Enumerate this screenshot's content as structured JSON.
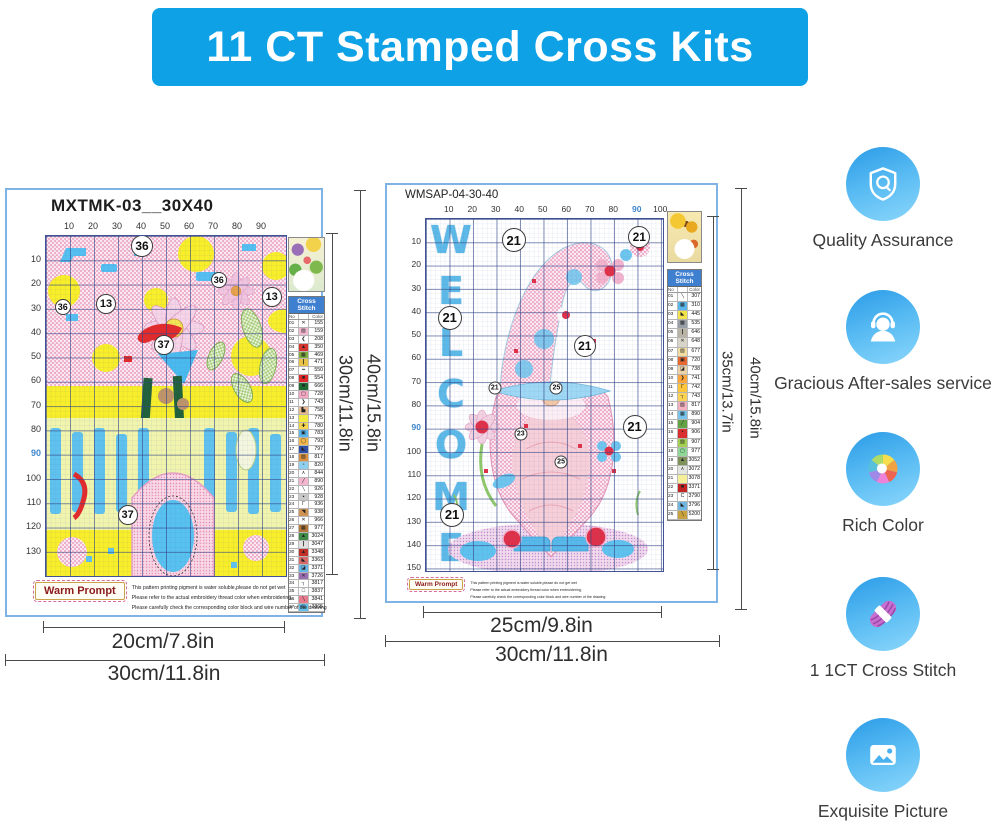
{
  "banner": {
    "title": "11 CT Stamped Cross Kits",
    "bg_color": "#0ea1e6"
  },
  "colors": {
    "banner_blue": "#0ea1e6",
    "pattern_yellow": "#f8ee29",
    "grid_navy": "#344687",
    "welcome_blue": "#55b7e7",
    "feature_icon_blue": "#49b1ee",
    "axis_highlight_blue": "#3f87cc"
  },
  "shared": {
    "legend_title": "Cross Stitch",
    "legend_col_no": "No",
    "legend_col_color": "Color",
    "warm_prompt_label": "Warm Prompt",
    "warm_prompt_lines": [
      "This pattern printing pigment is water soluble,please do not get wet",
      "Please refer to the actual embroidery thread color when embroidering,",
      "Please carefully check the corresponding color block and wire number of the drawing"
    ]
  },
  "left_pattern": {
    "code": "MXTMK-03__30X40",
    "x_axis": [
      "10",
      "20",
      "30",
      "40",
      "50",
      "60",
      "70",
      "80",
      "90"
    ],
    "y_axis": [
      "10",
      "20",
      "30",
      "40",
      "50",
      "60",
      "70",
      "80",
      "90",
      "100",
      "110",
      "120",
      "130"
    ],
    "markers": [
      {
        "t": "36",
        "x": 40,
        "y": 3,
        "sz": 22
      },
      {
        "t": "36",
        "x": 72,
        "y": 13,
        "sz": 16
      },
      {
        "t": "13",
        "x": 94,
        "y": 18,
        "sz": 20
      },
      {
        "t": "36",
        "x": 7,
        "y": 21,
        "sz": 16
      },
      {
        "t": "13",
        "x": 25,
        "y": 20,
        "sz": 20
      },
      {
        "t": "37",
        "x": 49,
        "y": 32,
        "sz": 20
      },
      {
        "t": "37",
        "x": 34,
        "y": 82,
        "sz": 20
      }
    ],
    "legend": [
      {
        "no": "01",
        "sym": "✕",
        "sw": "#ffffff",
        "code": "155"
      },
      {
        "no": "02",
        "sym": "▨",
        "sw": "#f2b8cf",
        "code": "159"
      },
      {
        "no": "03",
        "sym": "❮",
        "sw": "#ffffff",
        "code": "208"
      },
      {
        "no": "04",
        "sym": "▲",
        "sw": "#d8352f",
        "code": "350"
      },
      {
        "no": "05",
        "sym": "▦",
        "sw": "#7fae3f",
        "code": "469"
      },
      {
        "no": "06",
        "sym": "┃",
        "sw": "#e9c24a",
        "code": "471"
      },
      {
        "no": "07",
        "sym": "━",
        "sw": "#ffffff",
        "code": "550"
      },
      {
        "no": "08",
        "sym": "■",
        "sw": "#e02828",
        "code": "554"
      },
      {
        "no": "09",
        "sym": "■",
        "sw": "#1d6b33",
        "code": "666"
      },
      {
        "no": "10",
        "sym": "▢",
        "sw": "#f2a7c2",
        "code": "728"
      },
      {
        "no": "11",
        "sym": "❯",
        "sw": "#ffffff",
        "code": "743"
      },
      {
        "no": "12",
        "sym": "▙",
        "sw": "#e9b98e",
        "code": "758"
      },
      {
        "no": "13",
        "sym": "",
        "sw": "#f4e93f",
        "code": "775"
      },
      {
        "no": "14",
        "sym": "✚",
        "sw": "#f7d44e",
        "code": "780"
      },
      {
        "no": "15",
        "sym": "▣",
        "sw": "#5bb7ea",
        "code": "783"
      },
      {
        "no": "16",
        "sym": "◯",
        "sw": "#f0b64a",
        "code": "793"
      },
      {
        "no": "17",
        "sym": "◣",
        "sw": "#2f4ea6",
        "code": "797"
      },
      {
        "no": "18",
        "sym": "▨",
        "sw": "#d9903f",
        "code": "817"
      },
      {
        "no": "19",
        "sym": "▫",
        "sw": "#8fd0f0",
        "code": "820"
      },
      {
        "no": "20",
        "sym": "∧",
        "sw": "#ffffff",
        "code": "844"
      },
      {
        "no": "21",
        "sym": "╱",
        "sw": "#f4b6ce",
        "code": "890"
      },
      {
        "no": "22",
        "sym": "╲",
        "sw": "#ffffff",
        "code": "926"
      },
      {
        "no": "23",
        "sym": "▪",
        "sw": "#c8c8c8",
        "code": "928"
      },
      {
        "no": "24",
        "sym": "Γ",
        "sw": "#ffffff",
        "code": "936"
      },
      {
        "no": "25",
        "sym": "◥",
        "sw": "#cf9454",
        "code": "938"
      },
      {
        "no": "26",
        "sym": "✕",
        "sw": "#ffffff",
        "code": "966"
      },
      {
        "no": "27",
        "sym": "▦",
        "sw": "#b5773a",
        "code": "977"
      },
      {
        "no": "28",
        "sym": "▲",
        "sw": "#3e8a46",
        "code": "3024"
      },
      {
        "no": "29",
        "sym": "┃",
        "sw": "#e0e0e0",
        "code": "3047"
      },
      {
        "no": "30",
        "sym": "▲",
        "sw": "#c03028",
        "code": "3348"
      },
      {
        "no": "31",
        "sym": "◣",
        "sw": "#d76a6a",
        "code": "3363"
      },
      {
        "no": "32",
        "sym": "◪",
        "sw": "#67b6e6",
        "code": "3371"
      },
      {
        "no": "33",
        "sym": "✕",
        "sw": "#9a6db0",
        "code": "3726"
      },
      {
        "no": "34",
        "sym": "┐",
        "sw": "#ffffff",
        "code": "3817"
      },
      {
        "no": "35",
        "sym": "□",
        "sw": "#ffffff",
        "code": "3837"
      },
      {
        "no": "36",
        "sym": "╲",
        "sw": "#e87b8e",
        "code": "3841"
      },
      {
        "no": "37",
        "sym": "▤",
        "sw": "#62c2ee",
        "code": "3865"
      }
    ],
    "dims": {
      "width_inner": "20cm/7.8in",
      "width_outer": "30cm/11.8in",
      "height_inner": "30cm/11.8in",
      "height_outer": "40cm/15.8in"
    }
  },
  "right_pattern": {
    "code": "WMSAP-04-30-40",
    "welcome_letters": [
      "W",
      "E",
      "L",
      "C",
      "O",
      "M",
      "E"
    ],
    "x_axis": [
      "10",
      "20",
      "30",
      "40",
      "50",
      "60",
      "70",
      "80",
      "90",
      "100"
    ],
    "y_axis": [
      "10",
      "20",
      "30",
      "40",
      "50",
      "60",
      "70",
      "80",
      "90",
      "100",
      "110",
      "120",
      "130",
      "140",
      "150"
    ],
    "markers": [
      {
        "t": "21",
        "x": 37,
        "y": 6,
        "sz": 24
      },
      {
        "t": "21",
        "x": 90,
        "y": 5,
        "sz": 22
      },
      {
        "t": "21",
        "x": 10,
        "y": 28,
        "sz": 24
      },
      {
        "t": "21",
        "x": 67,
        "y": 36,
        "sz": 22
      },
      {
        "t": "21",
        "x": 29,
        "y": 48,
        "sz": 13
      },
      {
        "t": "21",
        "x": 88,
        "y": 59,
        "sz": 24
      },
      {
        "t": "25",
        "x": 55,
        "y": 48,
        "sz": 13
      },
      {
        "t": "23",
        "x": 40,
        "y": 61,
        "sz": 13
      },
      {
        "t": "25",
        "x": 57,
        "y": 69,
        "sz": 13
      },
      {
        "t": "21",
        "x": 11,
        "y": 84,
        "sz": 24
      }
    ],
    "legend": [
      {
        "no": "01",
        "sym": "╲",
        "sw": "#ffffff",
        "code": "307"
      },
      {
        "no": "02",
        "sym": "▦",
        "sw": "#5bb7ea",
        "code": "310"
      },
      {
        "no": "03",
        "sym": "◣",
        "sw": "#f3e24a",
        "code": "445"
      },
      {
        "no": "04",
        "sym": "▩",
        "sw": "#9aa0a8",
        "code": "535"
      },
      {
        "no": "05",
        "sym": "┃",
        "sw": "#b9b3a6",
        "code": "646"
      },
      {
        "no": "06",
        "sym": "✕",
        "sw": "#d9d4c8",
        "code": "648"
      },
      {
        "no": "07",
        "sym": "▨",
        "sw": "#f0dda0",
        "code": "677"
      },
      {
        "no": "08",
        "sym": "▣",
        "sw": "#e7692f",
        "code": "720"
      },
      {
        "no": "09",
        "sym": "◪",
        "sw": "#ecd2a8",
        "code": "738"
      },
      {
        "no": "10",
        "sym": "❯",
        "sw": "#ffa63a",
        "code": "741"
      },
      {
        "no": "11",
        "sym": "Γ",
        "sw": "#ffc63a",
        "code": "742"
      },
      {
        "no": "12",
        "sym": "┐",
        "sw": "#fcd255",
        "code": "743"
      },
      {
        "no": "13",
        "sym": "▨",
        "sw": "#f2b0c0",
        "code": "817"
      },
      {
        "no": "14",
        "sym": "▦",
        "sw": "#77c3ea",
        "code": "890"
      },
      {
        "no": "15",
        "sym": "╱",
        "sw": "#63a344",
        "code": "904"
      },
      {
        "no": "16",
        "sym": "▪",
        "sw": "#d92f2f",
        "code": "906"
      },
      {
        "no": "17",
        "sym": "▨",
        "sw": "#a3cf52",
        "code": "907"
      },
      {
        "no": "18",
        "sym": "▢",
        "sw": "#8fd897",
        "code": "977"
      },
      {
        "no": "19",
        "sym": "▲",
        "sw": "#7e9159",
        "code": "3052"
      },
      {
        "no": "20",
        "sym": "∧",
        "sw": "#e3e5e0",
        "code": "3072"
      },
      {
        "no": "21",
        "sym": "",
        "sw": "#f6ef9a",
        "code": "3078"
      },
      {
        "no": "22",
        "sym": "■",
        "sw": "#c22323",
        "code": "3371"
      },
      {
        "no": "23",
        "sym": "C",
        "sw": "#ffffff",
        "code": "3790"
      },
      {
        "no": "24",
        "sym": "◣",
        "sw": "#6fb6e0",
        "code": "3796"
      },
      {
        "no": "25",
        "sym": "╲",
        "sw": "#c9a23e",
        "code": "5200"
      }
    ],
    "dims": {
      "width_inner": "25cm/9.8in",
      "width_outer": "30cm/11.8in",
      "height_inner": "35cm/13.7in",
      "height_outer": "40cm/15.8in"
    }
  },
  "features": [
    {
      "icon": "shield-quality-icon",
      "label": "Quality Assurance"
    },
    {
      "icon": "headset-support-icon",
      "label": "Gracious After-sales service"
    },
    {
      "icon": "color-wheel-icon",
      "label": "Rich Color"
    },
    {
      "icon": "yarn-skein-icon",
      "label": "1 1CT Cross Stitch"
    },
    {
      "icon": "picture-icon",
      "label": "Exquisite Picture"
    }
  ]
}
